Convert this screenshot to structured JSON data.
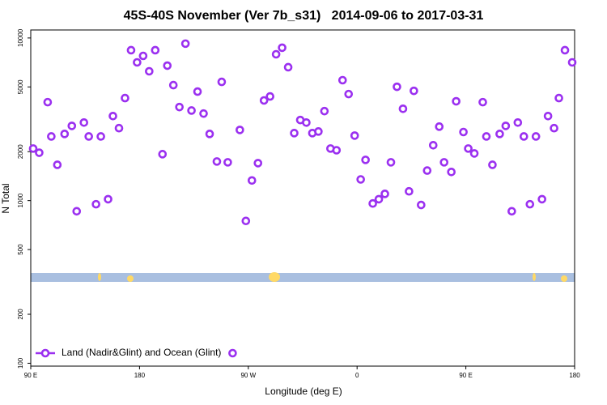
{
  "chart_data": {
    "type": "scatter",
    "title": "45S-40S November (Ver 7b_s31)   2014-09-06 to 2017-03-31",
    "x_label": "Longitude (deg E)",
    "y_label": "N Total",
    "ylog": true,
    "legend": "bottom-left",
    "xlim": [
      90,
      540
    ],
    "ylim": [
      96,
      11200
    ],
    "xticks": [
      {
        "value": 90,
        "label": "90 E"
      },
      {
        "value": 180,
        "label": "180"
      },
      {
        "value": 270,
        "label": "90 W"
      },
      {
        "value": 360,
        "label": "0"
      },
      {
        "value": 450,
        "label": "90 E"
      },
      {
        "value": 540,
        "label": "180"
      }
    ],
    "yticks": [
      100,
      200,
      500,
      1000,
      2000,
      5000,
      10000
    ],
    "series": [
      {
        "name": "Land (Nadir&Glint) and Ocean (Glint)",
        "color": "#9b30f0",
        "x": [
          92,
          97,
          104,
          107,
          112,
          118,
          124,
          128,
          134,
          138,
          144,
          148,
          154,
          158,
          163,
          168,
          173,
          178,
          183,
          188,
          193,
          199,
          203,
          208,
          213,
          218,
          223,
          228,
          233,
          238,
          244,
          248,
          253,
          263,
          268,
          273,
          278,
          283,
          288,
          293,
          298,
          303,
          308,
          313,
          318,
          323,
          328,
          333,
          338,
          343,
          348,
          353,
          358,
          363,
          367,
          373,
          378,
          383,
          388,
          393,
          398,
          403,
          407,
          413,
          418,
          423,
          428,
          432,
          438,
          442,
          448,
          452,
          457,
          464,
          467,
          472,
          478,
          483,
          488,
          493,
          498,
          503,
          508,
          513,
          518,
          523,
          527,
          532,
          538
        ],
        "values": [
          2090,
          1970,
          4030,
          2480,
          1660,
          2570,
          2880,
          860,
          3020,
          2480,
          950,
          2480,
          1020,
          3310,
          2790,
          4270,
          8410,
          7080,
          7760,
          6240,
          8410,
          1930,
          6760,
          5130,
          3760,
          9230,
          3580,
          4680,
          3430,
          2570,
          1740,
          5370,
          1720,
          2720,
          750,
          1330,
          1700,
          4130,
          4370,
          7940,
          8710,
          6610,
          2600,
          3130,
          3020,
          2600,
          2660,
          3550,
          2090,
          2040,
          5500,
          4520,
          2510,
          1350,
          1780,
          960,
          1020,
          1100,
          1720,
          5010,
          3670,
          1140,
          4730,
          940,
          1530,
          2190,
          2850,
          1720,
          1500,
          4080,
          2640,
          2090,
          1950,
          4030,
          2480,
          1660,
          2570,
          2880,
          860,
          3020,
          2480,
          950,
          2480,
          1020,
          3310,
          2790,
          4270,
          8410,
          7080
        ]
      }
    ]
  }
}
